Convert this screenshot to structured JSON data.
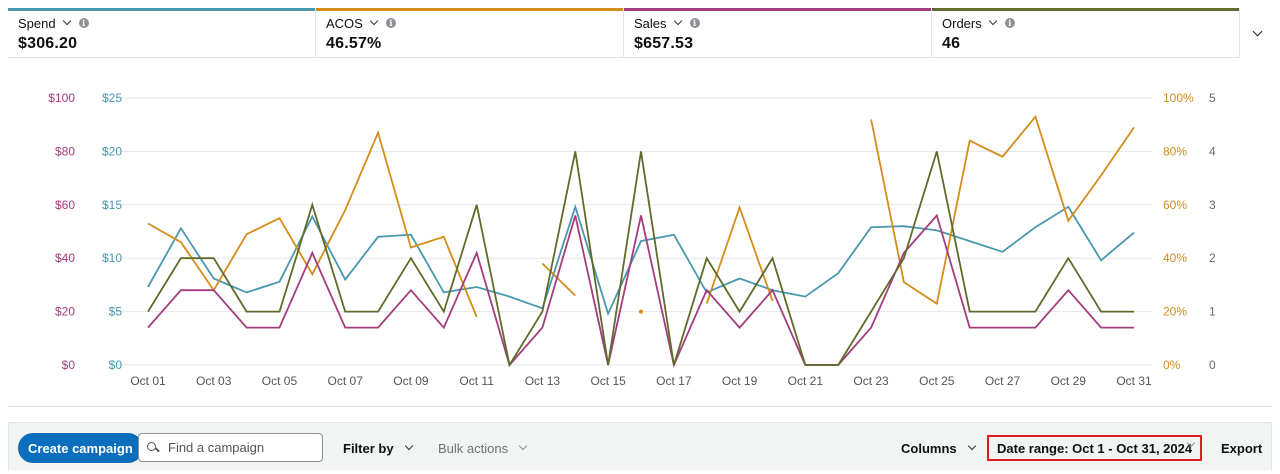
{
  "metrics": [
    {
      "label": "Spend",
      "value": "$306.20",
      "color": "#4a97b0"
    },
    {
      "label": "ACOS",
      "value": "46.57%",
      "color": "#d48c1a"
    },
    {
      "label": "Sales",
      "value": "$657.53",
      "color": "#a43d7b"
    },
    {
      "label": "Orders",
      "value": "46",
      "color": "#5f6b2a"
    }
  ],
  "toolbar": {
    "create_label": "Create campaign",
    "search_placeholder": "Find a campaign",
    "filter_label": "Filter by",
    "bulk_label": "Bulk actions",
    "columns_label": "Columns",
    "date_range_label": "Date range: Oct 1 - Oct 31, 2024",
    "export_label": "Export"
  },
  "chart_data": {
    "type": "line",
    "categories": [
      "Oct 01",
      "Oct 02",
      "Oct 03",
      "Oct 04",
      "Oct 05",
      "Oct 06",
      "Oct 07",
      "Oct 08",
      "Oct 09",
      "Oct 10",
      "Oct 11",
      "Oct 12",
      "Oct 13",
      "Oct 14",
      "Oct 15",
      "Oct 16",
      "Oct 17",
      "Oct 18",
      "Oct 19",
      "Oct 20",
      "Oct 21",
      "Oct 22",
      "Oct 23",
      "Oct 24",
      "Oct 25",
      "Oct 26",
      "Oct 27",
      "Oct 28",
      "Oct 29",
      "Oct 30",
      "Oct 31"
    ],
    "x_tick_labels": [
      "Oct 01",
      "Oct 03",
      "Oct 05",
      "Oct 07",
      "Oct 09",
      "Oct 11",
      "Oct 13",
      "Oct 15",
      "Oct 17",
      "Oct 19",
      "Oct 21",
      "Oct 23",
      "Oct 25",
      "Oct 27",
      "Oct 29",
      "Oct 31"
    ],
    "axes": {
      "sales": {
        "ticks": [
          "$0",
          "$20",
          "$40",
          "$60",
          "$80",
          "$100"
        ],
        "range": [
          0,
          100
        ],
        "color": "#a43d7b"
      },
      "spend": {
        "ticks": [
          "$0",
          "$5",
          "$10",
          "$15",
          "$20",
          "$25"
        ],
        "range": [
          0,
          25
        ],
        "color": "#4a97b0"
      },
      "acos": {
        "ticks": [
          "0%",
          "20%",
          "40%",
          "60%",
          "80%",
          "100%"
        ],
        "range": [
          0,
          100
        ],
        "color": "#d48c1a"
      },
      "orders": {
        "ticks": [
          "0",
          "1",
          "2",
          "3",
          "4",
          "5"
        ],
        "range": [
          0,
          5
        ],
        "color": "#6b6b6b"
      }
    },
    "grid": true,
    "series": [
      {
        "axis": "spend",
        "color": "#4a97b0",
        "values": [
          7.3,
          12.8,
          8.1,
          6.8,
          7.8,
          13.9,
          8.0,
          12.0,
          12.2,
          6.8,
          7.3,
          6.4,
          5.3,
          14.8,
          4.8,
          11.6,
          12.2,
          6.8,
          8.1,
          7.0,
          6.4,
          8.6,
          12.9,
          13.0,
          12.6,
          11.6,
          10.6,
          12.9,
          14.8,
          9.8,
          12.4
        ]
      },
      {
        "axis": "acos",
        "color": "#d48c1a",
        "values": [
          53,
          46,
          28,
          49,
          55,
          34,
          58,
          87,
          44,
          48,
          18,
          null,
          38,
          26,
          null,
          20,
          null,
          23,
          59,
          24,
          null,
          null,
          92,
          31,
          23,
          84,
          78,
          93,
          54,
          71,
          89
        ]
      },
      {
        "axis": "sales",
        "color": "#a43d7b",
        "values": [
          14,
          28,
          28,
          14,
          14,
          42,
          14,
          14,
          28,
          14,
          42,
          0,
          14,
          56,
          0,
          56,
          0,
          28,
          14,
          28,
          0,
          0,
          14,
          42,
          56,
          14,
          14,
          14,
          28,
          14,
          14
        ]
      },
      {
        "axis": "orders",
        "color": "#5f6b2a",
        "values": [
          1,
          2,
          2,
          1,
          1,
          3,
          1,
          1,
          2,
          1,
          3,
          0,
          1,
          4,
          0,
          4,
          0,
          2,
          1,
          2,
          0,
          0,
          1,
          2,
          4,
          1,
          1,
          1,
          2,
          1,
          1
        ]
      }
    ]
  }
}
